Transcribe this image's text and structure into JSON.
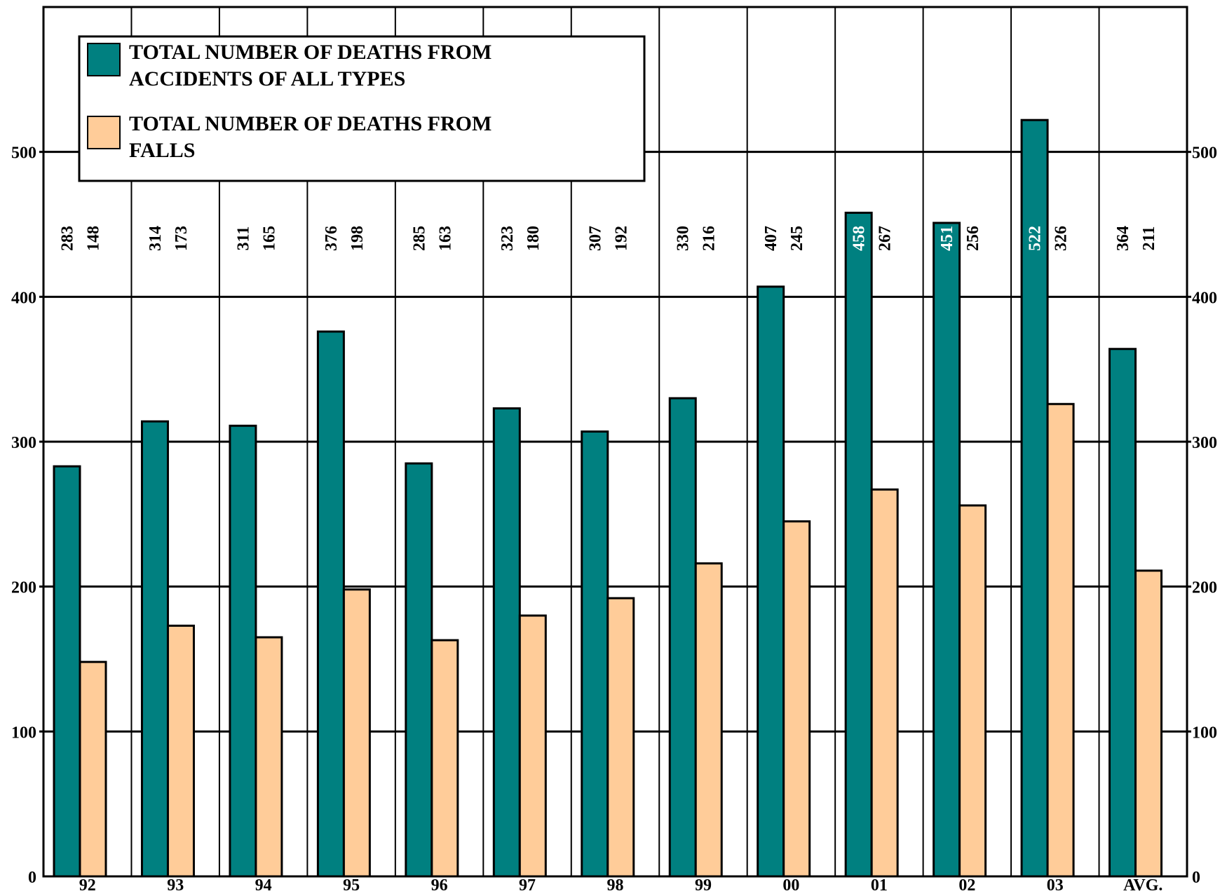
{
  "chart_data": {
    "type": "bar",
    "title": "",
    "xlabel": "",
    "ylabel": "",
    "ylim": [
      0,
      600
    ],
    "yticks": [
      0,
      100,
      200,
      300,
      400,
      500
    ],
    "grid": true,
    "legend_position": "top-left",
    "categories": [
      "92",
      "93",
      "94",
      "95",
      "96",
      "97",
      "98",
      "99",
      "00",
      "01",
      "02",
      "03",
      "AVG."
    ],
    "series": [
      {
        "name": "TOTAL NUMBER OF DEATHS FROM ACCIDENTS OF ALL TYPES",
        "legend_lines": [
          "TOTAL NUMBER OF DEATHS FROM",
          "ACCIDENTS OF ALL TYPES"
        ],
        "color": "#008080",
        "values": [
          283,
          314,
          311,
          376,
          285,
          323,
          307,
          330,
          407,
          458,
          451,
          522,
          364
        ]
      },
      {
        "name": "TOTAL NUMBER OF DEATHS FROM FALLS",
        "legend_lines": [
          "TOTAL NUMBER OF DEATHS FROM",
          "FALLS"
        ],
        "color": "#FFCC99",
        "values": [
          148,
          173,
          165,
          198,
          163,
          180,
          192,
          216,
          245,
          267,
          256,
          326,
          211
        ]
      }
    ]
  }
}
